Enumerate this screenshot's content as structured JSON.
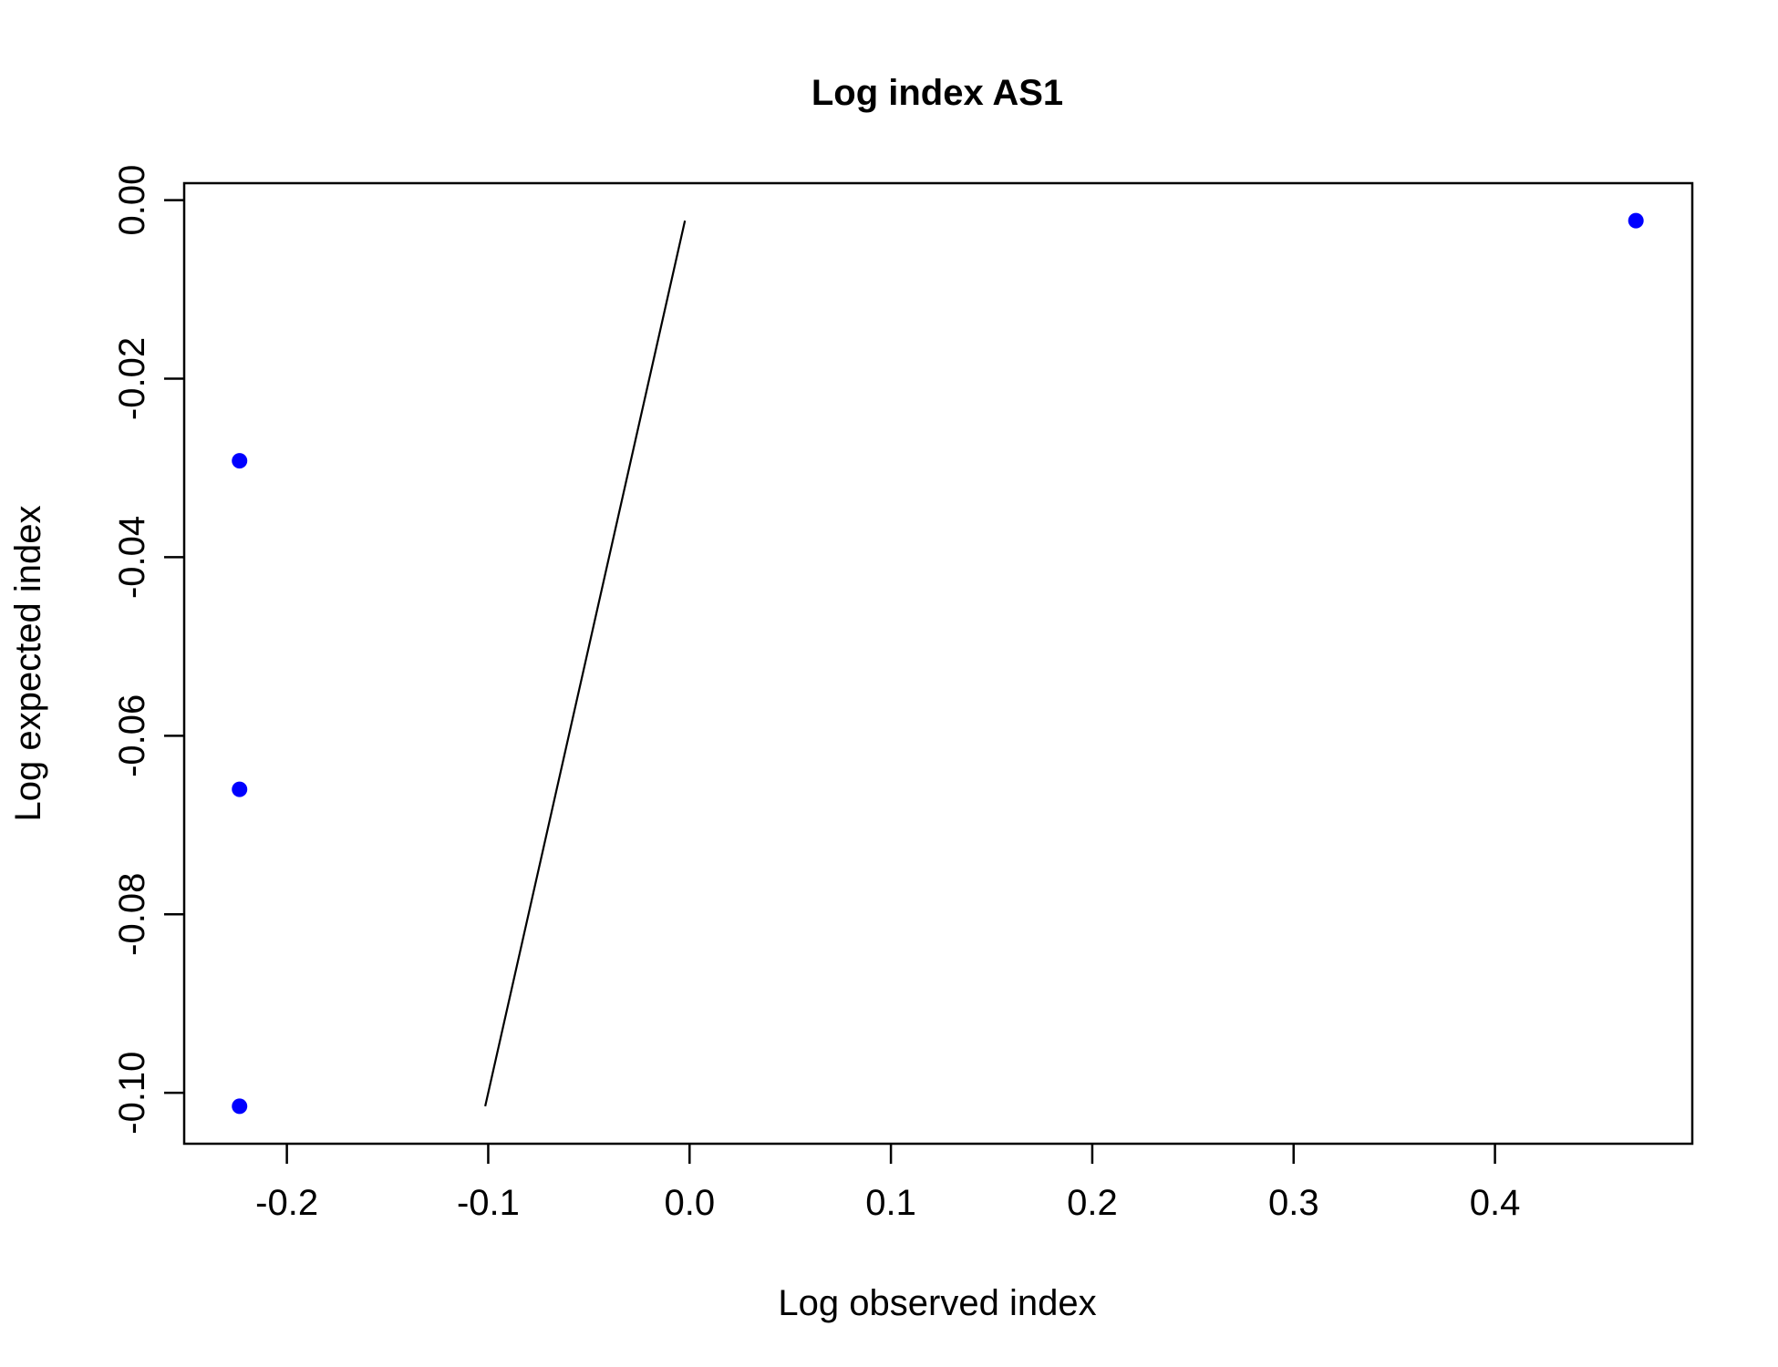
{
  "chart_data": {
    "type": "scatter",
    "title": "Log index AS1",
    "xlabel": "Log observed index",
    "ylabel": "Log expected index",
    "xlim": [
      -0.251,
      0.498
    ],
    "ylim": [
      -0.1057,
      0.0019
    ],
    "x_ticks": [
      -0.2,
      -0.1,
      0.0,
      0.1,
      0.2,
      0.3,
      0.4
    ],
    "x_tick_labels": [
      "-0.2",
      "-0.1",
      "0.0",
      "0.1",
      "0.2",
      "0.3",
      "0.4"
    ],
    "y_ticks": [
      0.0,
      -0.02,
      -0.04,
      -0.06,
      -0.08,
      -0.1
    ],
    "y_tick_labels": [
      "0.00",
      "-0.02",
      "-0.04",
      "-0.06",
      "-0.08",
      "-0.10"
    ],
    "points": [
      {
        "x": -0.2235,
        "y": -0.1015
      },
      {
        "x": -0.2235,
        "y": -0.066
      },
      {
        "x": -0.2235,
        "y": -0.0292
      },
      {
        "x": 0.47,
        "y": -0.0023
      }
    ],
    "line": [
      {
        "x": -0.1015,
        "y": -0.1015
      },
      {
        "x": -0.0023,
        "y": -0.0023
      }
    ],
    "point_color": "#0000ff",
    "line_color": "#000000",
    "grid": false,
    "legend": "none"
  }
}
